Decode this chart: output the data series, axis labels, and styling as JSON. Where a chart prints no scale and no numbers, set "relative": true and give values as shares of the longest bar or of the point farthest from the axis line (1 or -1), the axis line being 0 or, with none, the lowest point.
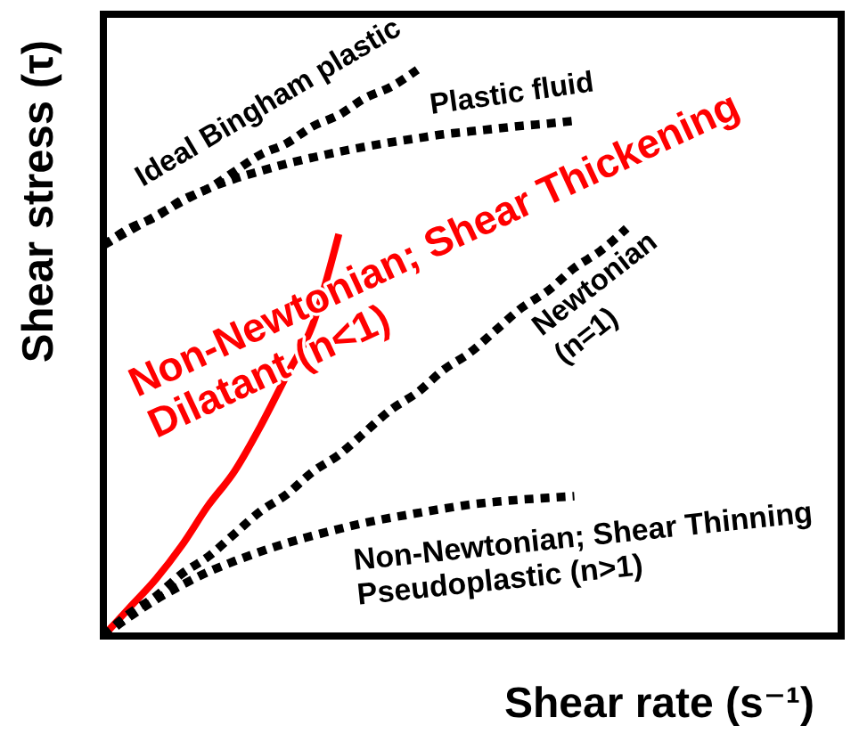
{
  "chart_data": {
    "type": "line",
    "relative": true,
    "marker": "none",
    "xlabel": "Shear rate (s⁻¹)",
    "ylabel": "Shear stress (τ)",
    "categories": [
      null,
      null,
      null,
      null,
      null,
      null,
      null,
      null,
      null,
      null,
      null,
      null,
      null,
      null,
      null,
      null,
      null,
      null,
      null,
      null,
      null
    ],
    "series": [
      {
        "name": "Ideal Bingham plastic",
        "color": "#000000",
        "line_style": "dotted",
        "values": [
          0.69,
          0.72,
          0.74,
          0.77,
          0.79,
          0.82,
          0.85,
          0.87,
          0.9,
          0.92,
          0.95,
          0.97,
          1.0,
          null,
          null,
          null,
          null,
          null,
          null,
          null,
          null
        ]
      },
      {
        "name": "Plastic fluid",
        "color": "#000000",
        "line_style": "dotted",
        "values": [
          0.69,
          0.716,
          0.742,
          0.767,
          0.79,
          0.807,
          0.821,
          0.834,
          0.845,
          0.855,
          0.864,
          0.872,
          0.879,
          0.886,
          0.891,
          0.896,
          0.901,
          0.905,
          0.91,
          null,
          null
        ]
      },
      {
        "name": "Non-Newtonian; Shear Thickening\nDilatant (n<1)",
        "color": "#ff0000",
        "line_style": "solid",
        "values": [
          0,
          0.05,
          0.1,
          0.16,
          0.23,
          0.29,
          0.37,
          0.46,
          0.55,
          0.71,
          null,
          null,
          null,
          null,
          null,
          null,
          null,
          null,
          null,
          null,
          null
        ]
      },
      {
        "name": "Newtonian\n(n=1)",
        "color": "#000000",
        "line_style": "dotted",
        "values": [
          0,
          0.04,
          0.07,
          0.11,
          0.14,
          0.18,
          0.22,
          0.25,
          0.29,
          0.32,
          0.36,
          0.4,
          0.43,
          0.47,
          0.5,
          0.54,
          0.58,
          0.61,
          0.65,
          0.68,
          0.72
        ]
      },
      {
        "name": "Non-Newtonian; Shear Thinning\nPseudoplastic (n>1)",
        "color": "#000000",
        "line_style": "dotted",
        "values": [
          0,
          0.034,
          0.064,
          0.09,
          0.113,
          0.132,
          0.149,
          0.164,
          0.177,
          0.189,
          0.2,
          0.209,
          0.217,
          0.225,
          0.232,
          0.237,
          0.241,
          0.244,
          0.247,
          null,
          null
        ]
      }
    ]
  }
}
